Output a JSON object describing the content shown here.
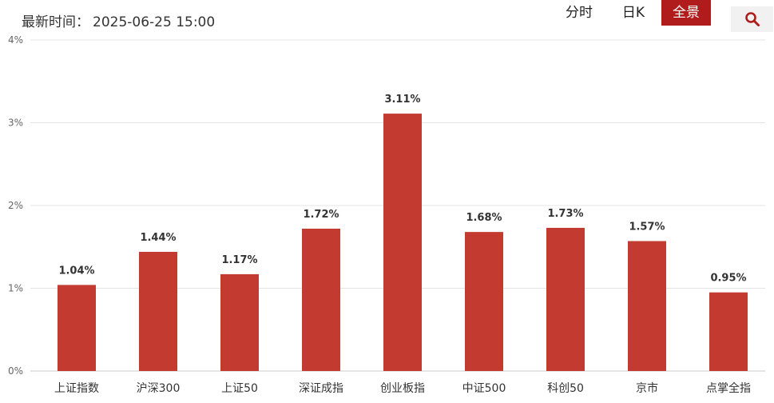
{
  "header": {
    "timestamp_label": "最新时间：",
    "timestamp_value": "2025-06-25 15:00",
    "tabs": [
      {
        "label": "分时",
        "active": false
      },
      {
        "label": "日K",
        "active": false
      },
      {
        "label": "全景",
        "active": true
      }
    ],
    "search_icon": "search-icon"
  },
  "colors": {
    "bar": "#c23a30",
    "active_tab": "#b01c1c",
    "grid": "#e4e4e4",
    "axis_text": "#666666",
    "label_text": "#333333"
  },
  "chart_data": {
    "type": "bar",
    "title": "",
    "xlabel": "",
    "ylabel": "",
    "categories": [
      "上证指数",
      "沪深300",
      "上证50",
      "深证成指",
      "创业板指",
      "中证500",
      "科创50",
      "京市",
      "点掌全指"
    ],
    "values": [
      1.04,
      1.44,
      1.17,
      1.72,
      3.11,
      1.68,
      1.73,
      1.57,
      0.95
    ],
    "value_labels": [
      "1.04%",
      "1.44%",
      "1.17%",
      "1.72%",
      "3.11%",
      "1.68%",
      "1.73%",
      "1.57%",
      "0.95%"
    ],
    "yticks": [
      0,
      1,
      2,
      3,
      4
    ],
    "ytick_labels": [
      "0%",
      "1%",
      "2%",
      "3%",
      "4%"
    ],
    "ylim": [
      0,
      4
    ],
    "grid": true,
    "legend": "none"
  }
}
